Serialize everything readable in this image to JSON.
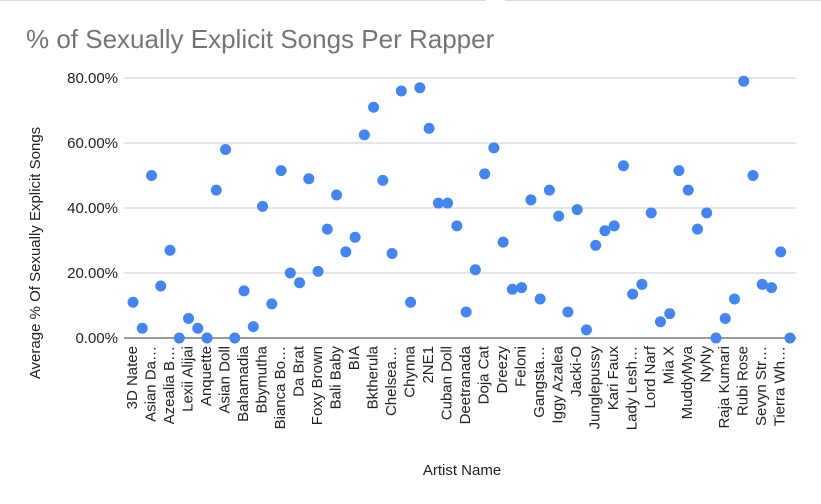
{
  "chart_data": {
    "type": "scatter",
    "title": "% of Sexually Explicit Songs Per Rapper",
    "xlabel": "Artist Name",
    "ylabel": "Average % Of Sexually Explicit Songs",
    "ylim": [
      0,
      80
    ],
    "y_ticks": [
      "0.00%",
      "20.00%",
      "40.00%",
      "60.00%",
      "80.00%"
    ],
    "grid": true,
    "legend": "none",
    "point_color": "#4285f4",
    "x_tick_labels": [
      "3D Natee",
      "Asian Da…",
      "Azealia B…",
      "Lexii Alijai",
      "Anquette",
      "Asian Doll",
      "Bahamadia",
      "Bbymutha",
      "Bianca Bo…",
      "Da Brat",
      "Foxy Brown",
      "Bali Baby",
      "BIA",
      "Bktherula",
      "Chelsea…",
      "Chynna",
      "2NE1",
      "Cuban Doll",
      "Deetranada",
      "Doja Cat",
      "Dreezy",
      "Feloni",
      "Gangsta…",
      "Iggy Azalea",
      "Jacki-O",
      "Junglepussy",
      "Kari Faux",
      "Lady Lesh…",
      "Lord Narf",
      "Mia X",
      "MuddyMya",
      "NyNy",
      "Raja Kumari",
      "Rubi Rose",
      "Sevyn Str…",
      "Tierra Wh…"
    ],
    "values": [
      11,
      3,
      50,
      16,
      27,
      0,
      6,
      3,
      0,
      45.5,
      58,
      0,
      14.5,
      3.5,
      40.5,
      10.5,
      51.5,
      20,
      17,
      49,
      20.5,
      33.5,
      44,
      26.5,
      31,
      62.5,
      71,
      48.5,
      26,
      76,
      11,
      77,
      64.5,
      41.5,
      41.5,
      34.5,
      8,
      21,
      50.5,
      58.5,
      29.5,
      15,
      15.5,
      42.5,
      12,
      45.5,
      37.5,
      8,
      39.5,
      2.5,
      28.5,
      33,
      34.5,
      53,
      13.5,
      16.5,
      38.5,
      5,
      7.5,
      51.5,
      45.5,
      33.5,
      38.5,
      0,
      6,
      12,
      79,
      50,
      16.5,
      15.5,
      26.5,
      0
    ]
  }
}
